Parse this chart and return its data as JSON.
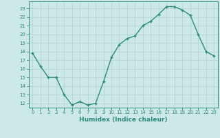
{
  "x": [
    0,
    1,
    2,
    3,
    4,
    5,
    6,
    7,
    8,
    9,
    10,
    11,
    12,
    13,
    14,
    15,
    16,
    17,
    18,
    19,
    20,
    21,
    22,
    23
  ],
  "y": [
    17.8,
    16.3,
    15.0,
    15.0,
    13.0,
    11.8,
    12.2,
    11.8,
    12.0,
    14.5,
    17.3,
    18.8,
    19.5,
    19.8,
    21.0,
    21.5,
    22.3,
    23.2,
    23.2,
    22.8,
    22.2,
    20.0,
    18.0,
    17.5
  ],
  "line_color": "#2e8b7a",
  "marker_color": "#2e8b7a",
  "bg_color": "#cce8e8",
  "grid_color": "#b8d8d8",
  "xlabel": "Humidex (Indice chaleur)",
  "ylim": [
    11.5,
    23.8
  ],
  "xlim": [
    -0.5,
    23.5
  ],
  "yticks": [
    12,
    13,
    14,
    15,
    16,
    17,
    18,
    19,
    20,
    21,
    22,
    23
  ],
  "xticks": [
    0,
    1,
    2,
    3,
    4,
    5,
    6,
    7,
    8,
    9,
    10,
    11,
    12,
    13,
    14,
    15,
    16,
    17,
    18,
    19,
    20,
    21,
    22,
    23
  ],
  "tick_color": "#2e8b7a",
  "label_color": "#2e8b7a",
  "axis_color": "#2e8b7a"
}
